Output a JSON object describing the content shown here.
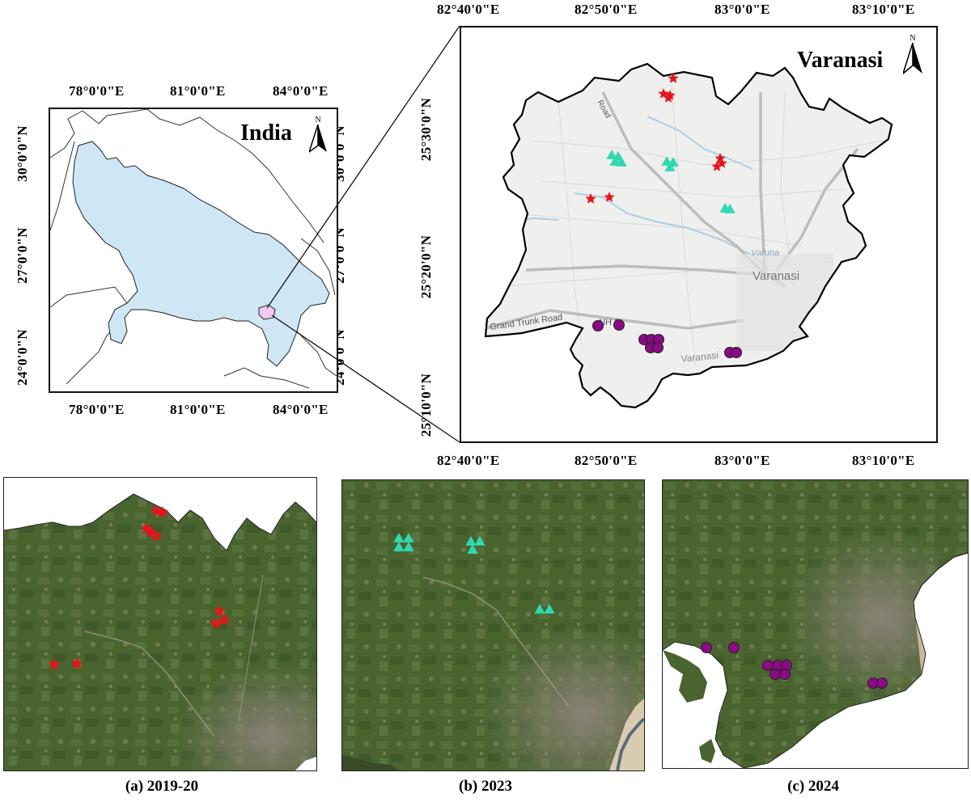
{
  "india_map": {
    "title": "India",
    "north_label": "N",
    "top_ticks": [
      "78°0'0\"E",
      "81°0'0\"E",
      "84°0'0\"E"
    ],
    "bottom_ticks": [
      "78°0'0\"E",
      "81°0'0\"E",
      "84°0'0\"E"
    ],
    "left_ticks": [
      "30°0'0\"N",
      "27°0'0\"N",
      "24°0'0\"N"
    ],
    "right_ticks": [
      "30°0'0\"N",
      "27°0'0\"N",
      "24°0'0\"N"
    ],
    "colors": {
      "state_fill": "#cfe6f4",
      "district_fill": "#f2c8f0",
      "border": "#222222"
    }
  },
  "varanasi_map": {
    "title": "Varanasi",
    "north_label": "N",
    "top_ticks": [
      "82°40'0\"E",
      "82°50'0\"E",
      "83°0'0\"E",
      "83°10'0\"E"
    ],
    "bottom_ticks": [
      "82°40'0\"E",
      "82°50'0\"E",
      "83°0'0\"E",
      "83°10'0\"E"
    ],
    "left_ticks": [
      "25°30'0\"N",
      "25°20'0\"N",
      "25°10'0\"N"
    ],
    "right_ticks": [
      "25°30'0\"N",
      "25°20'0\"N",
      "25°10'0\"N"
    ],
    "basemap_labels": {
      "road_1": "Grand Trunk Road",
      "road_2": "NH 2",
      "road_3": "Road",
      "river": "Varuna",
      "city": "Varanasi",
      "city_2": "Varanasi"
    },
    "colors": {
      "basemap": "#efefed",
      "river": "#a9cfe6",
      "road": "#bdbdbd",
      "boundary": "#000000"
    }
  },
  "legend_symbols": {
    "2019-20": {
      "shape": "star",
      "color": "#e8141c"
    },
    "2023": {
      "shape": "triangle",
      "color": "#2fd9b0"
    },
    "2024": {
      "shape": "circle",
      "color": "#8b0a86"
    }
  },
  "panels": {
    "a": {
      "label": "(a)",
      "year": "2019-20"
    },
    "b": {
      "label": "(b)",
      "year": "2023"
    },
    "c": {
      "label": "(c)",
      "year": "2024"
    }
  }
}
